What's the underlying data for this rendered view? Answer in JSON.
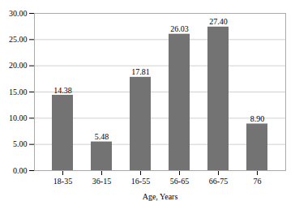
{
  "chart_data": {
    "type": "bar",
    "xlabel": "Age, Years",
    "categories": [
      "18-35",
      "36-15",
      "16-55",
      "56-65",
      "66-75",
      "76"
    ],
    "values": [
      14.38,
      5.48,
      17.81,
      26.03,
      27.4,
      8.9
    ],
    "value_labels": [
      "14.38",
      "5.48",
      "17.81",
      "26.03",
      "27.40",
      "8.90"
    ],
    "data_labels": true,
    "color": "#737373",
    "ylim": [
      0,
      30
    ],
    "yticks": [
      {
        "value": 0,
        "label": "0.00"
      },
      {
        "value": 5,
        "label": "5.00"
      },
      {
        "value": 10,
        "label": "10.00"
      },
      {
        "value": 15,
        "label": "15.00"
      },
      {
        "value": 20,
        "label": "20.00"
      },
      {
        "value": 25,
        "label": "25.00"
      },
      {
        "value": 30,
        "label": "30.00"
      }
    ],
    "grid": true
  }
}
